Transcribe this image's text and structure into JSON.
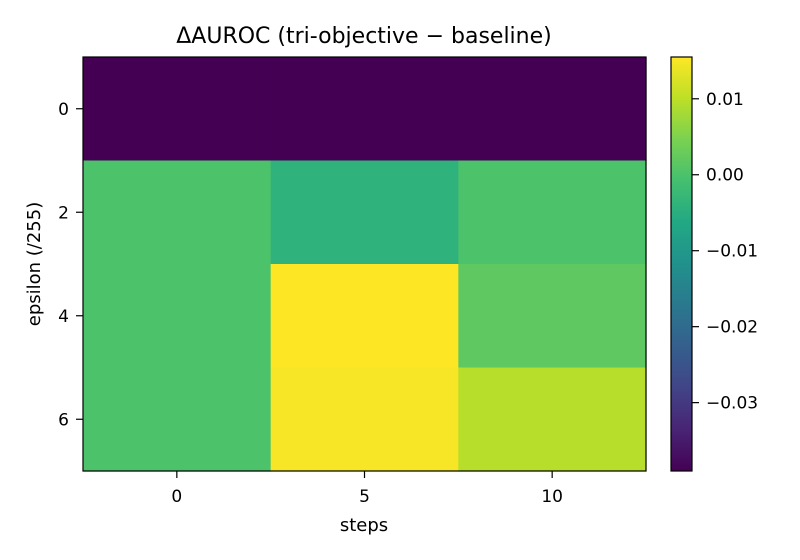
{
  "chart_data": {
    "type": "heatmap",
    "title": "ΔAUROC (tri-objective − baseline)",
    "xlabel": "steps",
    "ylabel": "epsilon (/255)",
    "x": [
      "0",
      "5",
      "10"
    ],
    "y": [
      "0",
      "2",
      "4",
      "6"
    ],
    "y_tick_labels_shown": [
      "0",
      "2",
      "4",
      "6"
    ],
    "values": [
      [
        -0.039,
        -0.039,
        -0.039
      ],
      [
        0.0,
        -0.004,
        0.0
      ],
      [
        0.0,
        0.0155,
        0.002
      ],
      [
        0.0,
        0.015,
        0.0095
      ]
    ],
    "colorbar": {
      "min": -0.039,
      "max": 0.0155,
      "ticks": [
        0.01,
        0.0,
        -0.01,
        -0.02,
        -0.03
      ],
      "tick_labels": [
        "0.01",
        "0.00",
        "−0.01",
        "−0.02",
        "−0.03"
      ],
      "colormap": "viridis"
    },
    "grid": false
  }
}
